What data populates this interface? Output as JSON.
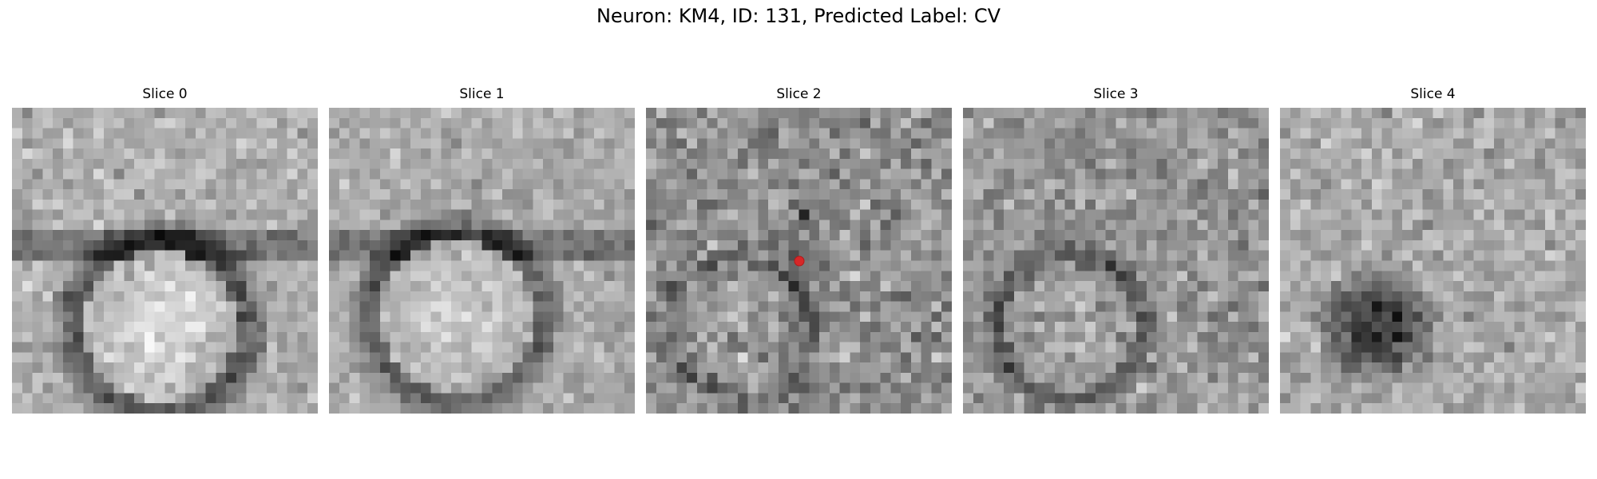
{
  "figure": {
    "title": "Neuron: KM4, ID: 131, Predicted Label: CV"
  },
  "panels": [
    {
      "title": "Slice 0",
      "colormap": "gray",
      "content": "circular bright soma at lower center surrounded by a dark membrane ring"
    },
    {
      "title": "Slice 1",
      "colormap": "gray",
      "content": "bright soma at lower left with dark membrane ring above"
    },
    {
      "title": "Slice 2",
      "colormap": "gray",
      "content": "noisy texture with red marker at center",
      "marker": {
        "color": "#d62728"
      }
    },
    {
      "title": "Slice 3",
      "colormap": "gray",
      "content": "faint bright soma at lower left with dark ring"
    },
    {
      "title": "Slice 4",
      "colormap": "gray",
      "content": "dark round blob at lower left on bright noisy background"
    }
  ]
}
